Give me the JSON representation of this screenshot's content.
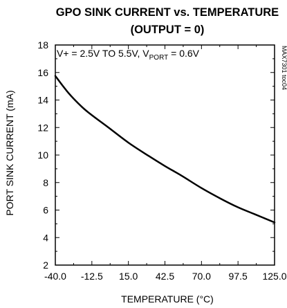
{
  "chart_data": {
    "type": "line",
    "title": "GPO SINK CURRENT vs. TEMPERATURE",
    "subtitle": "(OUTPUT = 0)",
    "xlabel": "TEMPERATURE (°C)",
    "ylabel": "PORT SINK CURRENT (mA)",
    "xlim": [
      -40,
      125
    ],
    "ylim": [
      2,
      18
    ],
    "xticks": [
      -40,
      -12.5,
      15,
      42.5,
      70,
      97.5,
      125
    ],
    "xtick_labels": [
      "-40.0",
      "-12.5",
      "15.0",
      "42.5",
      "70.0",
      "97.5",
      "125.0"
    ],
    "yticks": [
      2,
      4,
      6,
      8,
      10,
      12,
      14,
      16,
      18
    ],
    "ytick_labels": [
      "2",
      "4",
      "6",
      "8",
      "10",
      "12",
      "14",
      "16",
      "18"
    ],
    "grid": false,
    "annotation": {
      "main": "V+ = 2.5V TO 5.5V, V",
      "sub": "PORT",
      "tail": " = 0.6V"
    },
    "figure_code": "MAX7301 toc04",
    "line_color": "#000000",
    "series": [
      {
        "x": [
          -40,
          -30,
          -20,
          -12.5,
          0,
          15,
          30,
          42.5,
          55,
          70,
          85,
          97.5,
          110,
          125
        ],
        "values": [
          15.75,
          14.5,
          13.5,
          12.9,
          12.0,
          10.9,
          9.95,
          9.2,
          8.5,
          7.6,
          6.8,
          6.2,
          5.7,
          5.1
        ]
      }
    ]
  }
}
